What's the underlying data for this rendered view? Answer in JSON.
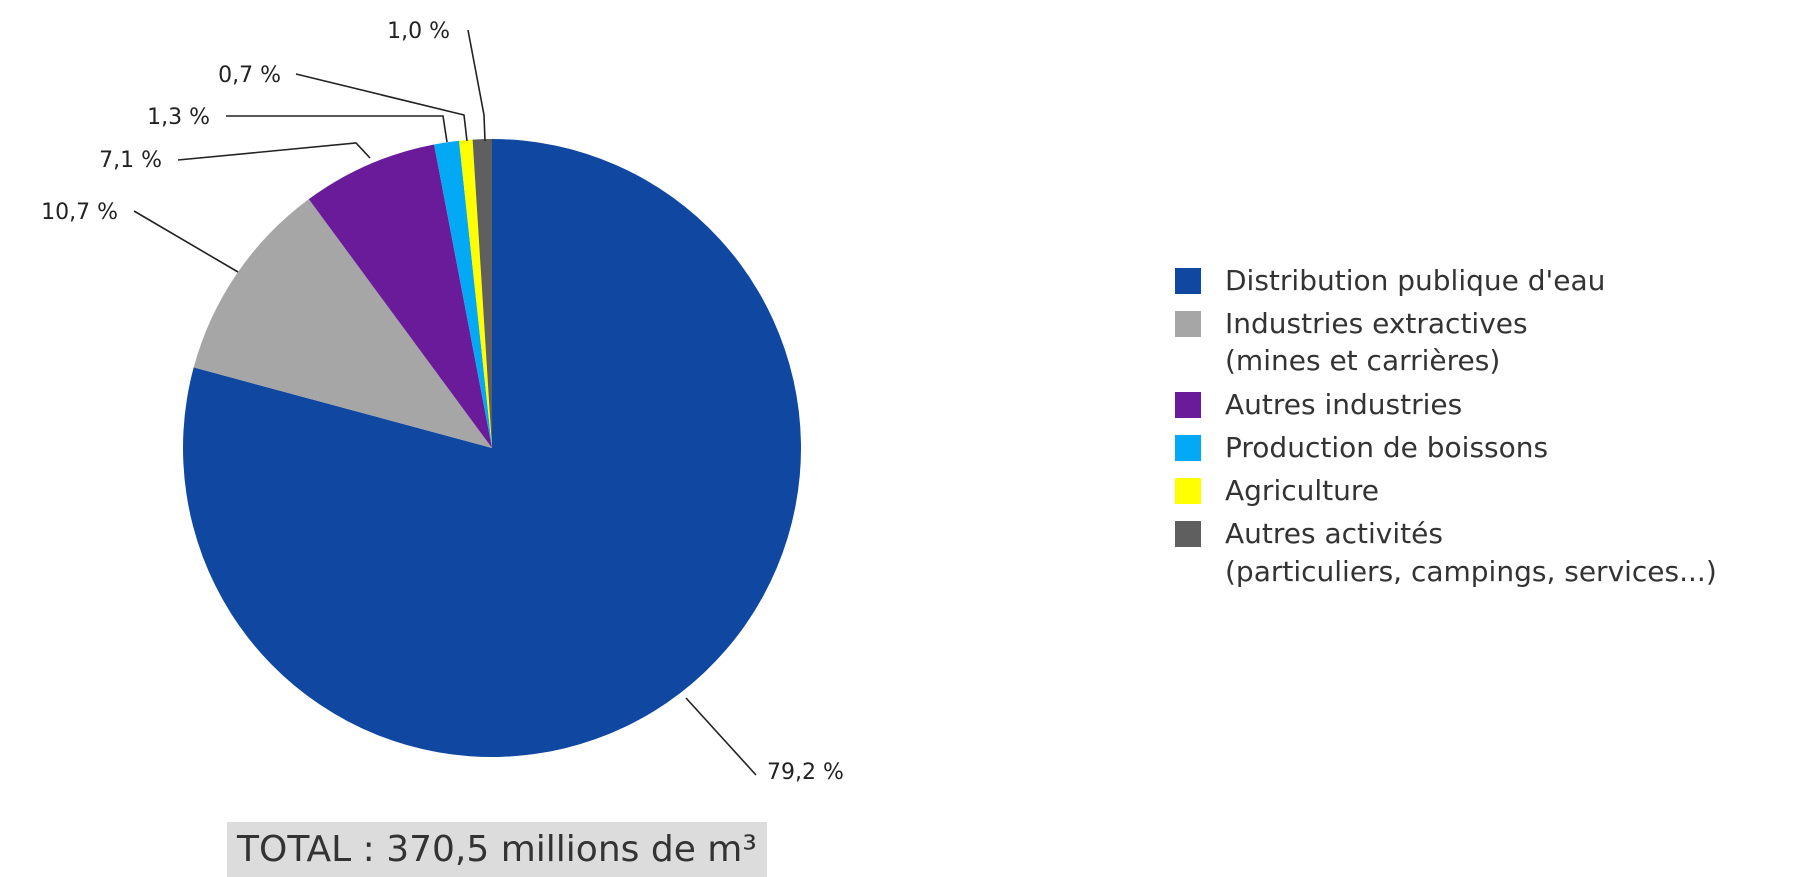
{
  "chart_data": {
    "type": "pie",
    "slices": [
      {
        "label": "Distribution publique d'eau",
        "value": 79.2,
        "value_text": "79,2 %",
        "color": "#0f47a1"
      },
      {
        "label": "Industries extractives (mines et carrières)",
        "value": 10.7,
        "value_text": "10,7 %",
        "color": "#a6a6a6"
      },
      {
        "label": "Autres industries",
        "value": 7.1,
        "value_text": "7,1 %",
        "color": "#6a1b9a"
      },
      {
        "label": "Production de boissons",
        "value": 1.3,
        "value_text": "1,3 %",
        "color": "#03a9f4"
      },
      {
        "label": "Agriculture",
        "value": 0.7,
        "value_text": "0,7 %",
        "color": "#ffff00"
      },
      {
        "label": "Autres activités (particuliers, campings, services...)",
        "value": 1.0,
        "value_text": "1,0 %",
        "color": "#5f5f5f"
      }
    ],
    "start": "12 o'clock",
    "direction": "clockwise",
    "legend_position": "right"
  },
  "legend": {
    "items": [
      {
        "line1": "Distribution publique d'eau",
        "line2": "",
        "color": "#0f47a1"
      },
      {
        "line1": "Industries extractives",
        "line2": "(mines et carrières)",
        "color": "#a6a6a6"
      },
      {
        "line1": "Autres industries",
        "line2": "",
        "color": "#6a1b9a"
      },
      {
        "line1": "Production de boissons",
        "line2": "",
        "color": "#03a9f4"
      },
      {
        "line1": "Agriculture",
        "line2": "",
        "color": "#ffff00"
      },
      {
        "line1": "Autres activités",
        "line2": "(particuliers, campings, services...)",
        "color": "#5f5f5f"
      }
    ]
  },
  "total": {
    "text": "TOTAL : 370,5 millions de m³"
  }
}
